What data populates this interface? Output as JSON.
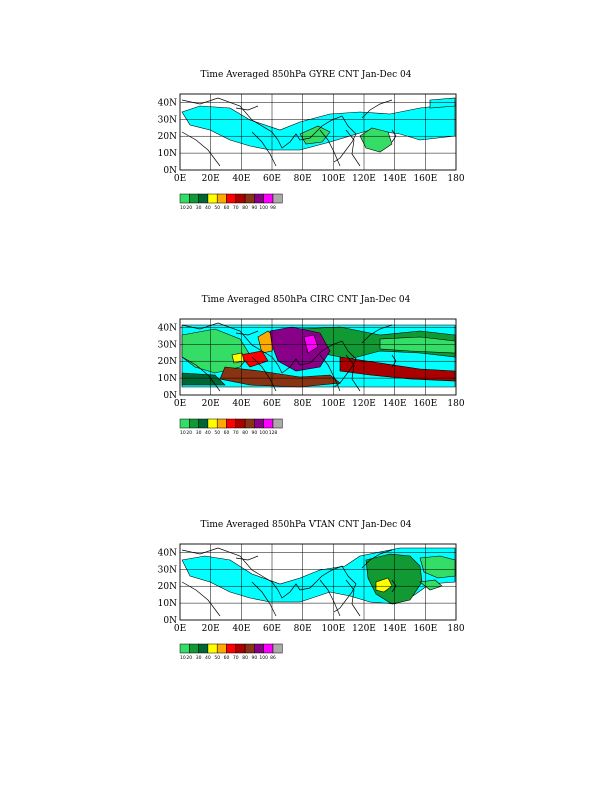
{
  "panels": [
    {
      "title": "Time Averaged 850hPa GYRE CNT Jan-Dec 04",
      "lat_labels": [
        "40N",
        "30N",
        "20N",
        "10N",
        "0N"
      ],
      "lon_labels": [
        "0E",
        "20E",
        "40E",
        "60E",
        "80E",
        "100E",
        "120E",
        "140E",
        "160E",
        "180"
      ],
      "colorbar_labels": [
        "10",
        "20",
        "30",
        "40",
        "50",
        "60",
        "70",
        "80",
        "90",
        "100",
        "98"
      ]
    },
    {
      "title": "Time Averaged 850hPa CIRC CNT Jan-Dec 04",
      "lat_labels": [
        "40N",
        "30N",
        "20N",
        "10N",
        "0N"
      ],
      "lon_labels": [
        "0E",
        "20E",
        "40E",
        "60E",
        "80E",
        "100E",
        "120E",
        "140E",
        "160E",
        "180"
      ],
      "colorbar_labels": [
        "10",
        "20",
        "30",
        "40",
        "50",
        "60",
        "70",
        "80",
        "90",
        "100",
        "128"
      ]
    },
    {
      "title": "Time Averaged 850hPa VTAN CNT Jan-Dec 04",
      "lat_labels": [
        "40N",
        "30N",
        "20N",
        "10N",
        "0N"
      ],
      "lon_labels": [
        "0E",
        "20E",
        "40E",
        "60E",
        "80E",
        "100E",
        "120E",
        "140E",
        "160E",
        "180"
      ],
      "colorbar_labels": [
        "10",
        "20",
        "30",
        "40",
        "50",
        "60",
        "70",
        "80",
        "90",
        "100",
        "86"
      ]
    }
  ],
  "colors": {
    "cyan": "#00ffff",
    "green_light": "#33dd66",
    "green": "#119933",
    "green_dark": "#006633",
    "yellow": "#ffff00",
    "orange": "#ffaa00",
    "red": "#ff0000",
    "dark_red": "#aa0000",
    "brown": "#883311",
    "purple": "#880088",
    "magenta": "#ff00ff",
    "grey": "#aaaaaa"
  }
}
